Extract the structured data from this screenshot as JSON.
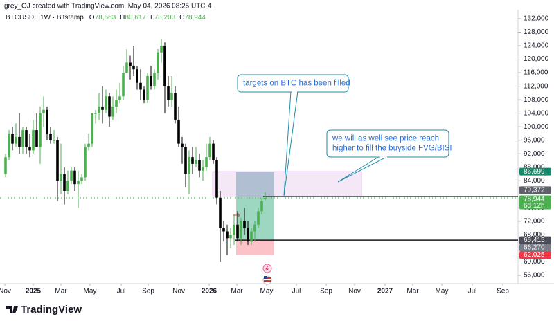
{
  "header": "grey_OJ created with TradingView.com, May 04, 2026 08:25 UTC-4",
  "logo": "TradingView",
  "chart_data": {
    "type": "candlestick",
    "symbol": "BTCUSD · 1W · Bitstamp",
    "ohlc_legend": [
      {
        "prefix": "O",
        "label": "78,663"
      },
      {
        "prefix": "H",
        "label": "80,617"
      },
      {
        "prefix": "L",
        "label": "78,203"
      },
      {
        "prefix": "C",
        "label": "78,944"
      }
    ],
    "up_color": "#4caf50",
    "down_color": "#000000",
    "x": [
      0,
      1,
      2,
      3,
      4,
      5,
      6,
      7,
      8,
      9,
      10,
      11,
      12,
      13,
      14,
      15,
      16,
      17,
      18,
      19,
      20,
      21,
      22,
      23,
      24,
      25,
      26,
      27,
      28,
      29,
      30,
      31,
      32,
      33,
      34,
      35,
      36,
      37,
      38,
      39,
      40,
      41,
      42,
      43,
      44,
      45,
      46,
      47,
      48,
      49,
      50,
      51,
      52,
      53,
      54,
      55,
      56,
      57,
      58,
      59,
      60,
      61,
      62,
      63,
      64,
      65,
      66,
      67,
      68,
      69,
      70,
      71,
      72,
      73,
      74,
      75
    ],
    "open": [
      86000,
      91000,
      98000,
      95000,
      97000,
      94000,
      99000,
      94000,
      93000,
      99000,
      94000,
      104000,
      105000,
      98000,
      96000,
      96000,
      84000,
      86000,
      81000,
      84000,
      87000,
      83000,
      84000,
      85000,
      94000,
      95000,
      104000,
      104000,
      106000,
      105000,
      109000,
      103000,
      106000,
      108000,
      109000,
      116000,
      119000,
      118000,
      117000,
      113000,
      111000,
      108000,
      115000,
      112000,
      116000,
      122000,
      124000,
      112000,
      108000,
      110000,
      102000,
      95000,
      94000,
      86000,
      91000,
      89000,
      90000,
      87000,
      88000,
      91000,
      95000,
      90000,
      79000,
      70000,
      69000,
      67000,
      68000,
      71000,
      67000,
      72000,
      70000,
      66000,
      69000,
      71000,
      75000,
      78663
    ],
    "high": [
      92000,
      99000,
      100000,
      101000,
      104000,
      100000,
      100000,
      98000,
      102000,
      104000,
      106000,
      109000,
      106000,
      100000,
      99000,
      97000,
      95000,
      88000,
      87000,
      88000,
      88000,
      87000,
      86000,
      95000,
      98000,
      104000,
      105000,
      110000,
      112000,
      111000,
      110000,
      109000,
      111000,
      113000,
      118000,
      123000,
      121000,
      124000,
      118000,
      117000,
      112000,
      116000,
      118000,
      117000,
      123000,
      126000,
      125000,
      115000,
      115000,
      112000,
      106000,
      97000,
      95000,
      93000,
      94000,
      94000,
      92000,
      90000,
      95000,
      97000,
      96000,
      91000,
      81000,
      72000,
      71000,
      70000,
      74000,
      75000,
      73000,
      76000,
      72000,
      70000,
      72000,
      76000,
      79000,
      80617
    ],
    "low": [
      85000,
      90000,
      93000,
      94000,
      92000,
      92000,
      92000,
      91000,
      92000,
      94000,
      89000,
      100000,
      96000,
      95000,
      95000,
      78000,
      80000,
      77000,
      80000,
      83000,
      81000,
      76000,
      83000,
      84000,
      93000,
      94000,
      101000,
      102000,
      101000,
      104000,
      100000,
      102000,
      104000,
      107000,
      108000,
      116000,
      114000,
      115000,
      111000,
      108000,
      107000,
      107000,
      111000,
      111000,
      114000,
      119000,
      104000,
      106000,
      106000,
      101000,
      94000,
      89000,
      82000,
      80000,
      86000,
      88000,
      85000,
      84000,
      87000,
      90000,
      89000,
      77000,
      60000,
      66000,
      62000,
      64000,
      65000,
      66000,
      65000,
      68000,
      65000,
      65000,
      66000,
      70000,
      74000,
      78203
    ],
    "close": [
      91000,
      98000,
      95000,
      97000,
      94000,
      99000,
      94000,
      93000,
      99000,
      94000,
      104000,
      105000,
      98000,
      96000,
      96000,
      84000,
      86000,
      81000,
      84000,
      87000,
      83000,
      84000,
      85000,
      94000,
      95000,
      104000,
      104000,
      106000,
      105000,
      109000,
      103000,
      106000,
      108000,
      109000,
      116000,
      119000,
      118000,
      117000,
      113000,
      111000,
      108000,
      115000,
      112000,
      116000,
      122000,
      124000,
      112000,
      108000,
      110000,
      102000,
      95000,
      94000,
      86000,
      91000,
      89000,
      90000,
      87000,
      88000,
      91000,
      95000,
      90000,
      79000,
      70000,
      69000,
      67000,
      68000,
      71000,
      67000,
      72000,
      70000,
      66000,
      69000,
      71000,
      75000,
      78000,
      78944
    ],
    "xlim": [
      -1.6,
      148
    ],
    "xticks": [
      {
        "value": -0.2,
        "label": "Nov"
      },
      {
        "value": 8,
        "label": "2025"
      },
      {
        "value": 16,
        "label": "Mar"
      },
      {
        "value": 24.4,
        "label": "May"
      },
      {
        "value": 33.4,
        "label": "Jul"
      },
      {
        "value": 41.2,
        "label": "Sep"
      },
      {
        "value": 50,
        "label": "Nov"
      },
      {
        "value": 58.8,
        "label": "2026"
      },
      {
        "value": 66.8,
        "label": "Mar"
      },
      {
        "value": 75.4,
        "label": "May"
      },
      {
        "value": 84,
        "label": "Jul"
      },
      {
        "value": 92.6,
        "label": "Sep"
      },
      {
        "value": 100.8,
        "label": "Nov"
      },
      {
        "value": 109.6,
        "label": "2027"
      },
      {
        "value": 117.6,
        "label": "Mar"
      },
      {
        "value": 126,
        "label": "May"
      },
      {
        "value": 134.8,
        "label": "Jul"
      },
      {
        "value": 143.6,
        "label": "Sep"
      }
    ],
    "ylim": [
      53540,
      134660
    ],
    "yticks": [
      {
        "value": 132000,
        "label": "132,000"
      },
      {
        "value": 128000,
        "label": "128,000"
      },
      {
        "value": 124000,
        "label": "124,000"
      },
      {
        "value": 120000,
        "label": "120,000"
      },
      {
        "value": 116000,
        "label": "116,000"
      },
      {
        "value": 112000,
        "label": "112,000"
      },
      {
        "value": 108000,
        "label": "108,000"
      },
      {
        "value": 104000,
        "label": "104,000"
      },
      {
        "value": 100000,
        "label": "100,000"
      },
      {
        "value": 96000,
        "label": "96,000"
      },
      {
        "value": 92000,
        "label": "92,000"
      },
      {
        "value": 88000,
        "label": "88,000"
      },
      {
        "value": 84000,
        "label": "84,000"
      },
      {
        "value": 76000,
        "label": "76,000"
      },
      {
        "value": 72000,
        "label": "72,000"
      },
      {
        "value": 68000,
        "label": "68,000"
      },
      {
        "value": 60000,
        "label": "60,000"
      },
      {
        "value": 56000,
        "label": "56,000"
      }
    ],
    "price_labels": [
      {
        "value": 86699,
        "label": "86,699",
        "color": "#18886a"
      },
      {
        "value": 79372,
        "label": "79,372",
        "color": "#5d606b"
      },
      {
        "value": 78944,
        "label": "78,944",
        "color": "#4caf50",
        "sub": "6d 12h"
      },
      {
        "value": 66415,
        "label": "66,415",
        "color": "#4a4d57"
      },
      {
        "value": 66270,
        "label": "66,270",
        "color": "#787b86"
      },
      {
        "value": 62025,
        "label": "62,025",
        "color": "#f23645"
      }
    ],
    "annotations": [
      {
        "lines": [
          "targets on BTC has been filled"
        ]
      },
      {
        "lines": [
          "we will as well see price reach",
          "higher to fill the buyside FVG/BISI"
        ]
      }
    ]
  }
}
